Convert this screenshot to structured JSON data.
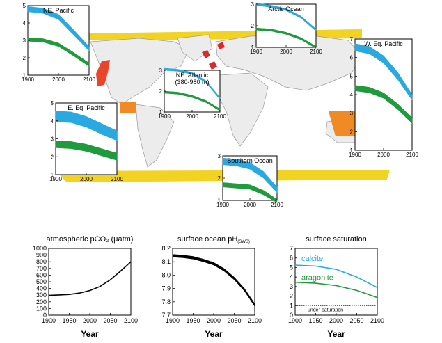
{
  "colors": {
    "calcite": "#2aa8e0",
    "aragonite": "#1f9a3c",
    "land": "#ececec",
    "coast": "#9a9a9a",
    "ice": "#f2d321",
    "upwelling": "#f08a24",
    "coral": "#e8452b",
    "arctic_patch": "#d92b2b"
  },
  "chart_data": [
    {
      "id": "ne-pacific",
      "type": "area",
      "title": "NE. Pacific",
      "xlim": [
        1900,
        2100
      ],
      "ylim": [
        1,
        5
      ],
      "xticks": [
        1900,
        2000,
        2100
      ],
      "yticks": [
        1,
        2,
        3,
        4,
        5
      ],
      "saturation_line": 1,
      "series": [
        {
          "key": "calcite",
          "x": [
            1900,
            1950,
            2000,
            2050,
            2100
          ],
          "lower": [
            4.65,
            4.55,
            4.2,
            3.3,
            2.4
          ],
          "upper": [
            4.95,
            4.85,
            4.5,
            3.6,
            2.65
          ]
        },
        {
          "key": "aragonite",
          "x": [
            1900,
            1950,
            2000,
            2050,
            2100
          ],
          "lower": [
            2.95,
            2.9,
            2.65,
            2.1,
            1.5
          ],
          "upper": [
            3.15,
            3.1,
            2.85,
            2.3,
            1.7
          ]
        }
      ]
    },
    {
      "id": "arctic-ocean",
      "type": "area",
      "title": "Arctic Ocean",
      "xlim": [
        1900,
        2100
      ],
      "ylim": [
        1,
        3
      ],
      "xticks": [
        1900,
        2000,
        2100
      ],
      "yticks": [
        1,
        2,
        3
      ],
      "saturation_line": 1,
      "series": [
        {
          "key": "calcite",
          "x": [
            1900,
            1950,
            2000,
            2050,
            2100
          ],
          "lower": [
            2.95,
            2.85,
            2.7,
            2.35,
            1.75
          ],
          "upper": [
            3.05,
            2.95,
            2.8,
            2.45,
            1.85
          ]
        },
        {
          "key": "aragonite",
          "x": [
            1900,
            1950,
            2000,
            2050,
            2100
          ],
          "lower": [
            1.8,
            1.75,
            1.6,
            1.35,
            0.95
          ],
          "upper": [
            1.9,
            1.85,
            1.7,
            1.45,
            1.05
          ]
        }
      ]
    },
    {
      "id": "w-eq-pacific",
      "type": "area",
      "title": "W. Eq. Pacific",
      "xlim": [
        1900,
        2100
      ],
      "ylim": [
        1,
        7
      ],
      "xticks": [
        1900,
        2000,
        2100
      ],
      "yticks": [
        1,
        2,
        3,
        4,
        5,
        6,
        7
      ],
      "saturation_line": 1,
      "series": [
        {
          "key": "calcite",
          "x": [
            1900,
            1950,
            2000,
            2050,
            2100
          ],
          "lower": [
            6.35,
            6.2,
            5.7,
            4.8,
            3.7
          ],
          "upper": [
            6.75,
            6.6,
            6.1,
            5.2,
            4.0
          ]
        },
        {
          "key": "aragonite",
          "x": [
            1900,
            1950,
            2000,
            2050,
            2100
          ],
          "lower": [
            4.2,
            4.1,
            3.8,
            3.2,
            2.45
          ],
          "upper": [
            4.5,
            4.4,
            4.1,
            3.5,
            2.75
          ]
        }
      ]
    },
    {
      "id": "ne-atlantic",
      "type": "area",
      "title": "NE. Atlantic",
      "subtitle": "(380-980 m)",
      "xlim": [
        1900,
        2100
      ],
      "ylim": [
        1,
        3
      ],
      "xticks": [
        1900,
        2000,
        2100
      ],
      "yticks": [
        1,
        2,
        3
      ],
      "saturation_line": 1,
      "series": [
        {
          "key": "calcite",
          "x": [
            1900,
            1950,
            2000,
            2050,
            2100
          ],
          "lower": [
            3.0,
            2.95,
            2.8,
            2.4,
            1.6
          ],
          "upper": [
            3.1,
            3.05,
            2.9,
            2.5,
            1.7
          ]
        },
        {
          "key": "aragonite",
          "x": [
            1900,
            1950,
            2000,
            2050,
            2100
          ],
          "lower": [
            1.9,
            1.85,
            1.7,
            1.45,
            1.05
          ],
          "upper": [
            2.0,
            1.95,
            1.8,
            1.55,
            1.15
          ]
        }
      ]
    },
    {
      "id": "e-eq-pacific",
      "type": "area",
      "title": "E. Eq. Pacific",
      "xlim": [
        1900,
        2100
      ],
      "ylim": [
        1,
        5
      ],
      "xticks": [
        1900,
        2000,
        2100
      ],
      "yticks": [
        1,
        2,
        3,
        4,
        5
      ],
      "saturation_line": 1,
      "series": [
        {
          "key": "calcite",
          "x": [
            1900,
            1950,
            2000,
            2050,
            2100
          ],
          "lower": [
            3.95,
            3.9,
            3.65,
            3.25,
            2.9
          ],
          "upper": [
            4.55,
            4.5,
            4.25,
            3.85,
            3.45
          ]
        },
        {
          "key": "aragonite",
          "x": [
            1900,
            1950,
            2000,
            2050,
            2100
          ],
          "lower": [
            2.5,
            2.45,
            2.3,
            2.05,
            1.8
          ],
          "upper": [
            2.9,
            2.85,
            2.7,
            2.45,
            2.2
          ]
        }
      ]
    },
    {
      "id": "southern-ocean",
      "type": "area",
      "title": "Southern Ocean",
      "xlim": [
        1900,
        2100
      ],
      "ylim": [
        1,
        3
      ],
      "xticks": [
        1900,
        2000,
        2100
      ],
      "yticks": [
        1,
        2,
        3
      ],
      "saturation_line": 1,
      "series": [
        {
          "key": "calcite",
          "x": [
            1900,
            1950,
            2000,
            2050,
            2100
          ],
          "lower": [
            2.6,
            2.55,
            2.4,
            2.0,
            1.35
          ],
          "upper": [
            2.9,
            2.85,
            2.7,
            2.3,
            1.6
          ]
        },
        {
          "key": "aragonite",
          "x": [
            1900,
            1950,
            2000,
            2050,
            2100
          ],
          "lower": [
            1.6,
            1.55,
            1.5,
            1.25,
            0.9
          ],
          "upper": [
            1.8,
            1.75,
            1.7,
            1.45,
            1.05
          ]
        }
      ]
    },
    {
      "id": "pco2",
      "type": "line",
      "title": "atmospheric pCO₂ (μatm)",
      "xlabel": "Year",
      "xlim": [
        1900,
        2100
      ],
      "ylim": [
        0,
        1000
      ],
      "xticks": [
        1900,
        1950,
        2000,
        2050,
        2100
      ],
      "yticks": [
        0,
        100,
        200,
        300,
        400,
        500,
        600,
        700,
        800,
        900,
        1000
      ],
      "series": [
        {
          "key": "pco2",
          "x": [
            1900,
            1925,
            1950,
            1975,
            2000,
            2025,
            2050,
            2075,
            2100
          ],
          "values": [
            296,
            303,
            311,
            331,
            369,
            430,
            530,
            660,
            800
          ]
        }
      ]
    },
    {
      "id": "ph",
      "type": "line",
      "title": "surface ocean pH",
      "title_subscript": "(SWS)",
      "xlabel": "Year",
      "xlim": [
        1900,
        2100
      ],
      "ylim": [
        7.7,
        8.2
      ],
      "xticks": [
        1900,
        1950,
        2000,
        2050,
        2100
      ],
      "yticks": [
        7.7,
        7.8,
        7.9,
        8.0,
        8.1,
        8.2
      ],
      "series": [
        {
          "key": "ph",
          "x": [
            1900,
            1925,
            1950,
            1975,
            2000,
            2025,
            2050,
            2075,
            2100
          ],
          "lower": [
            8.135,
            8.13,
            8.12,
            8.1,
            8.075,
            8.03,
            7.965,
            7.88,
            7.765
          ],
          "upper": [
            8.155,
            8.15,
            8.14,
            8.12,
            8.095,
            8.05,
            7.985,
            7.9,
            7.785
          ]
        }
      ]
    },
    {
      "id": "saturation",
      "type": "line",
      "title": "surface saturation",
      "xlabel": "Year",
      "xlim": [
        1900,
        2100
      ],
      "ylim": [
        0,
        7
      ],
      "xticks": [
        1900,
        1950,
        2000,
        2050,
        2100
      ],
      "yticks": [
        0,
        1,
        2,
        3,
        4,
        5,
        6,
        7
      ],
      "saturation_line": 1,
      "labels": {
        "calcite": "calcite",
        "aragonite": "aragonite",
        "under": "under-saturation"
      },
      "series": [
        {
          "key": "calcite",
          "x": [
            1900,
            1950,
            2000,
            2050,
            2100
          ],
          "values": [
            5.25,
            5.15,
            4.8,
            4.0,
            2.9
          ]
        },
        {
          "key": "aragonite",
          "x": [
            1900,
            1950,
            2000,
            2050,
            2100
          ],
          "values": [
            3.45,
            3.35,
            3.1,
            2.6,
            1.85
          ]
        }
      ]
    }
  ]
}
